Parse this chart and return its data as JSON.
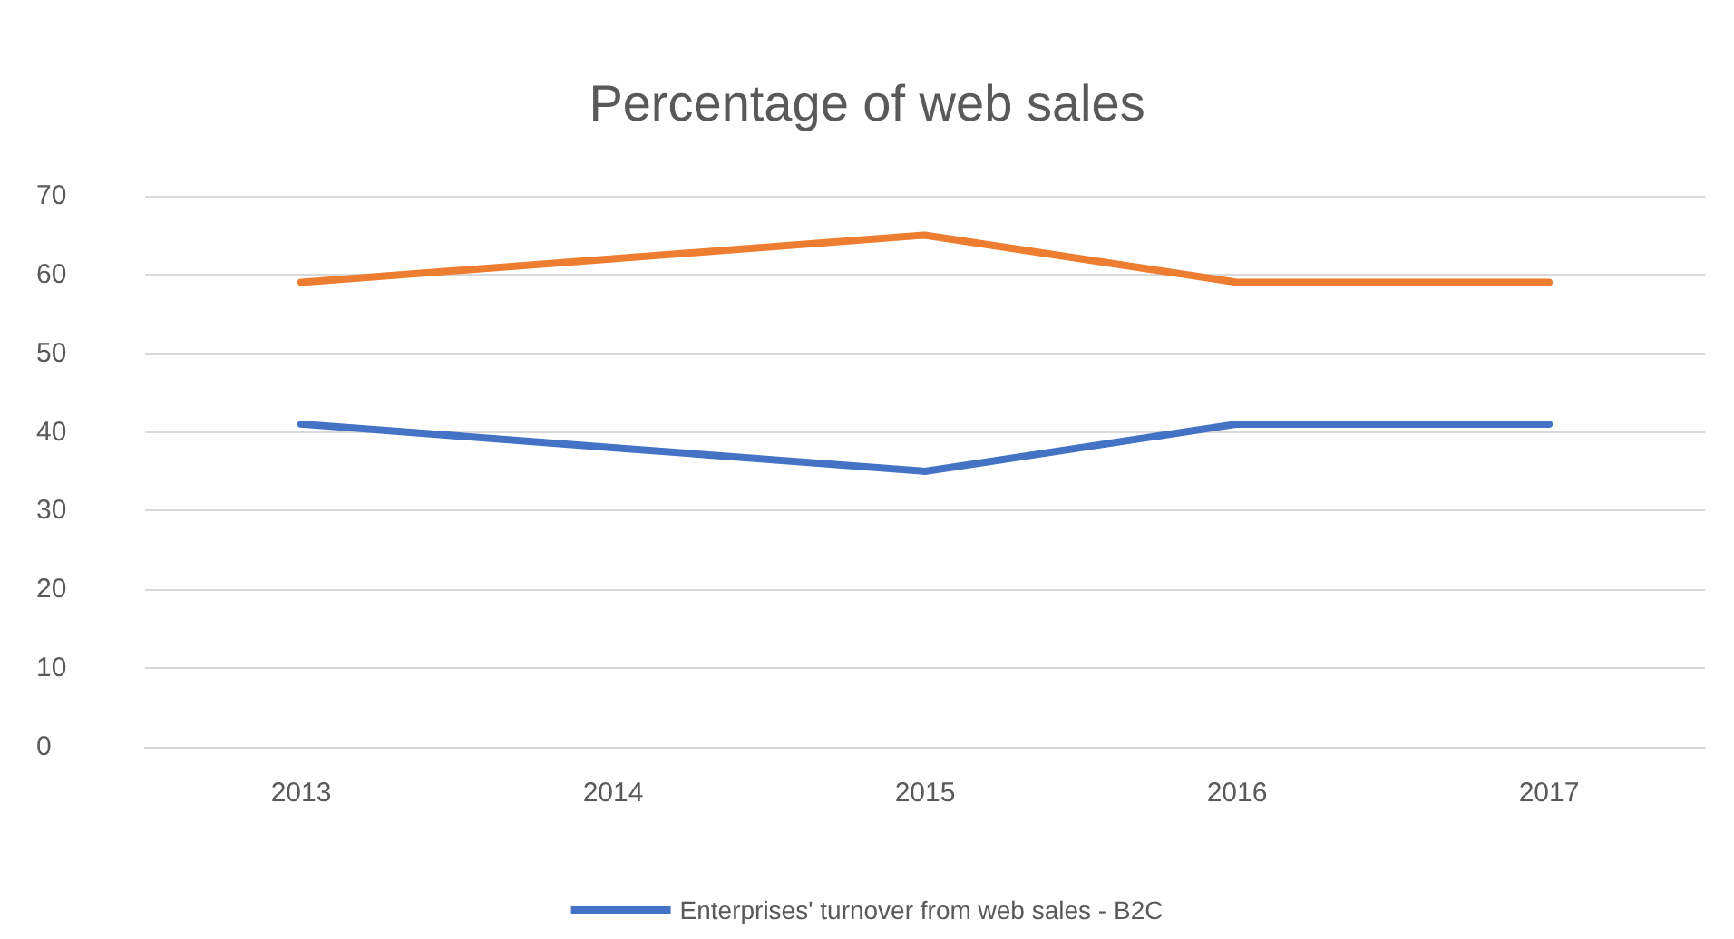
{
  "chart_data": {
    "type": "line",
    "title": "Percentage of web sales",
    "categories": [
      "2013",
      "2014",
      "2015",
      "2016",
      "2017"
    ],
    "series": [
      {
        "color": "#ed7d31",
        "values": [
          59,
          62,
          65,
          59,
          59
        ]
      },
      {
        "name": "Enterprises' turnover from web sales - B2C",
        "color": "#4472c4",
        "values": [
          41,
          38,
          35,
          41,
          41
        ]
      }
    ],
    "ylim": [
      0,
      70
    ],
    "yticks": [
      0,
      10,
      20,
      30,
      40,
      50,
      60,
      70
    ],
    "grid": "y",
    "legend": "bottom",
    "marker": "none",
    "line_style": "solid"
  }
}
